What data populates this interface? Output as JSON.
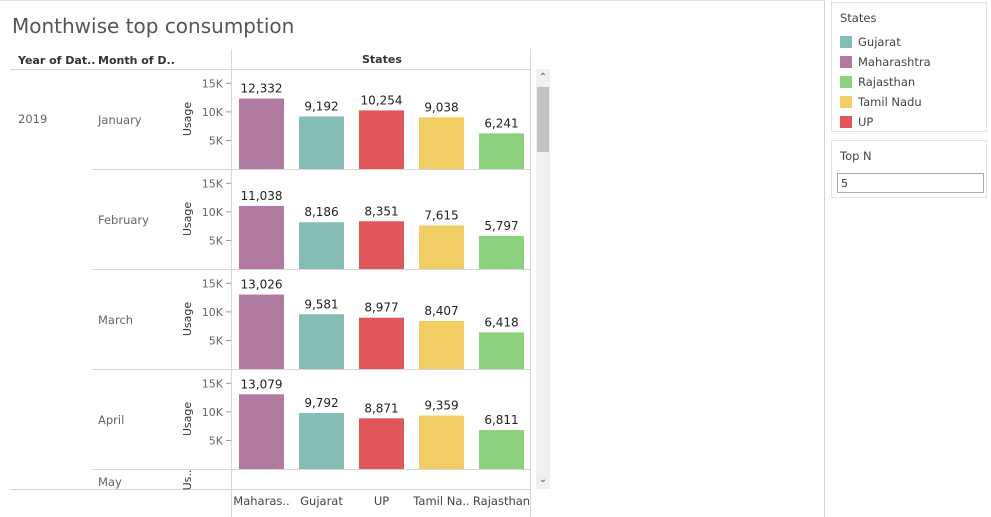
{
  "title": "Monthwise top consumption",
  "headers": {
    "year": "Year of Dat..",
    "month": "Month of D..",
    "states": "States"
  },
  "year": "2019",
  "axis_label": "Usage",
  "axis_label_partial": "Us..",
  "ticks": [
    "5K",
    "10K",
    "15K"
  ],
  "partial_month": "May",
  "x_labels": [
    "Maharas..",
    "Gujarat",
    "UP",
    "Tamil Na..",
    "Rajasthan"
  ],
  "legend": {
    "title": "States",
    "items": [
      {
        "label": "Gujarat",
        "color": "#86bcb6"
      },
      {
        "label": "Maharashtra",
        "color": "#b07aa1"
      },
      {
        "label": "Rajasthan",
        "color": "#8cd17d"
      },
      {
        "label": "Tamil Nadu",
        "color": "#f1ce63"
      },
      {
        "label": "UP",
        "color": "#e15759"
      }
    ]
  },
  "topn": {
    "title": "Top N",
    "value": "5"
  },
  "chart_data": {
    "type": "bar",
    "x_label": "States",
    "y_label": "Usage",
    "ylim": [
      0,
      17500
    ],
    "yticks": [
      5000,
      10000,
      15000
    ],
    "panels": [
      {
        "month": "January",
        "bars": [
          {
            "state": "Maharashtra",
            "value": 12332,
            "label": "12,332",
            "color": "#b07aa1"
          },
          {
            "state": "Gujarat",
            "value": 9192,
            "label": "9,192",
            "color": "#86bcb6"
          },
          {
            "state": "UP",
            "value": 10254,
            "label": "10,254",
            "color": "#e15759"
          },
          {
            "state": "Tamil Nadu",
            "value": 9038,
            "label": "9,038",
            "color": "#f1ce63"
          },
          {
            "state": "Rajasthan",
            "value": 6241,
            "label": "6,241",
            "color": "#8cd17d"
          }
        ]
      },
      {
        "month": "February",
        "bars": [
          {
            "state": "Maharashtra",
            "value": 11038,
            "label": "11,038",
            "color": "#b07aa1"
          },
          {
            "state": "Gujarat",
            "value": 8186,
            "label": "8,186",
            "color": "#86bcb6"
          },
          {
            "state": "UP",
            "value": 8351,
            "label": "8,351",
            "color": "#e15759"
          },
          {
            "state": "Tamil Nadu",
            "value": 7615,
            "label": "7,615",
            "color": "#f1ce63"
          },
          {
            "state": "Rajasthan",
            "value": 5797,
            "label": "5,797",
            "color": "#8cd17d"
          }
        ]
      },
      {
        "month": "March",
        "bars": [
          {
            "state": "Maharashtra",
            "value": 13026,
            "label": "13,026",
            "color": "#b07aa1"
          },
          {
            "state": "Gujarat",
            "value": 9581,
            "label": "9,581",
            "color": "#86bcb6"
          },
          {
            "state": "UP",
            "value": 8977,
            "label": "8,977",
            "color": "#e15759"
          },
          {
            "state": "Tamil Nadu",
            "value": 8407,
            "label": "8,407",
            "color": "#f1ce63"
          },
          {
            "state": "Rajasthan",
            "value": 6418,
            "label": "6,418",
            "color": "#8cd17d"
          }
        ]
      },
      {
        "month": "April",
        "bars": [
          {
            "state": "Maharashtra",
            "value": 13079,
            "label": "13,079",
            "color": "#b07aa1"
          },
          {
            "state": "Gujarat",
            "value": 9792,
            "label": "9,792",
            "color": "#86bcb6"
          },
          {
            "state": "UP",
            "value": 8871,
            "label": "8,871",
            "color": "#e15759"
          },
          {
            "state": "Tamil Nadu",
            "value": 9359,
            "label": "9,359",
            "color": "#f1ce63"
          },
          {
            "state": "Rajasthan",
            "value": 6811,
            "label": "6,811",
            "color": "#8cd17d"
          }
        ]
      }
    ]
  }
}
